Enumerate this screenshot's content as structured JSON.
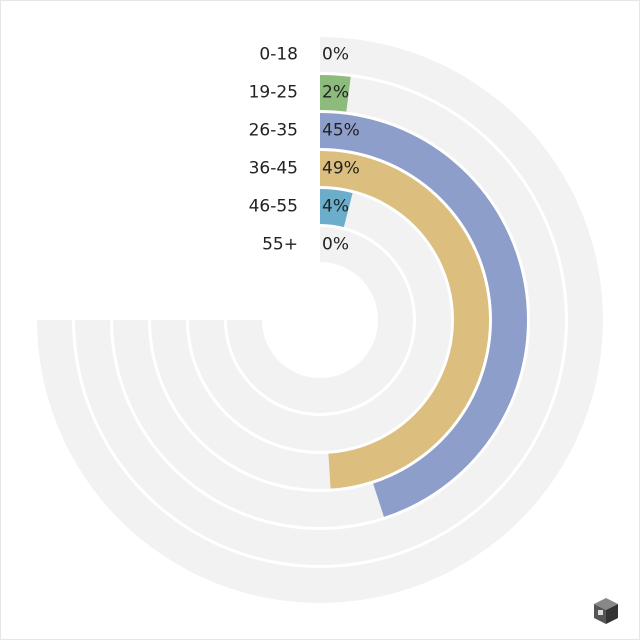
{
  "chart_data": {
    "type": "radial-bar",
    "categories": [
      "0-18",
      "19-25",
      "26-35",
      "36-45",
      "46-55",
      "55+"
    ],
    "values": [
      0,
      2,
      45,
      49,
      4,
      0
    ],
    "value_labels": [
      "0%",
      "2%",
      "45%",
      "49%",
      "4%",
      "0%"
    ],
    "colors": [
      null,
      "#8dbb7c",
      "#8e9ecb",
      "#dcbf7f",
      "#6aaecb",
      null
    ],
    "rlim": [
      0,
      100
    ]
  }
}
